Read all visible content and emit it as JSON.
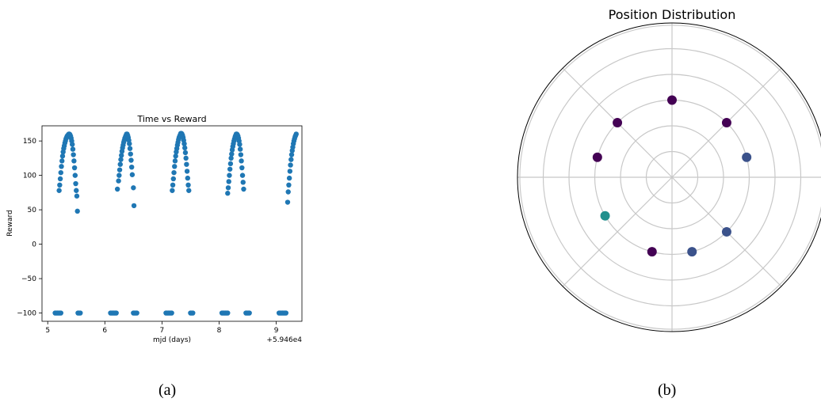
{
  "captions": {
    "a": "(a)",
    "b": "(b)"
  },
  "colors": {
    "scatter": "#1f77b4",
    "grid": "#c8c8c8",
    "polar_colors": [
      "#440154",
      "#3b528b",
      "#21908d"
    ]
  },
  "chart_data": [
    {
      "type": "scatter",
      "title": "Time vs Reward",
      "xlabel": "mjd (days)",
      "ylabel": "Reward",
      "x_offset_label": "+5.946e4",
      "x_ticks": [
        5,
        6,
        7,
        8,
        9
      ],
      "y_ticks": [
        -100,
        -50,
        0,
        50,
        100,
        150
      ],
      "xlim": [
        4.9,
        9.45
      ],
      "ylim": [
        -112,
        172
      ],
      "grid": false,
      "series": [
        {
          "points": [
            [
              5.2,
              78
            ],
            [
              5.21,
              86
            ],
            [
              5.22,
              95
            ],
            [
              5.23,
              104
            ],
            [
              5.24,
              113
            ],
            [
              5.25,
              121
            ],
            [
              5.26,
              128
            ],
            [
              5.27,
              134
            ],
            [
              5.28,
              139
            ],
            [
              5.29,
              143
            ],
            [
              5.3,
              147
            ],
            [
              5.31,
              150
            ],
            [
              5.32,
              153
            ],
            [
              5.33,
              155
            ],
            [
              5.34,
              157
            ],
            [
              5.35,
              158
            ],
            [
              5.36,
              159
            ],
            [
              5.37,
              160
            ],
            [
              5.38,
              160
            ],
            [
              5.39,
              159
            ],
            [
              5.4,
              157
            ],
            [
              5.41,
              154
            ],
            [
              5.42,
              150
            ],
            [
              5.43,
              145
            ],
            [
              5.44,
              138
            ],
            [
              5.45,
              130
            ],
            [
              5.46,
              121
            ],
            [
              5.47,
              111
            ],
            [
              5.48,
              100
            ],
            [
              5.49,
              88
            ],
            [
              5.5,
              78
            ],
            [
              5.51,
              70
            ],
            [
              5.52,
              48
            ],
            [
              6.22,
              80
            ],
            [
              6.24,
              92
            ],
            [
              6.25,
              100
            ],
            [
              6.26,
              108
            ],
            [
              6.27,
              116
            ],
            [
              6.28,
              123
            ],
            [
              6.29,
              129
            ],
            [
              6.3,
              135
            ],
            [
              6.31,
              140
            ],
            [
              6.32,
              144
            ],
            [
              6.33,
              148
            ],
            [
              6.34,
              151
            ],
            [
              6.35,
              154
            ],
            [
              6.36,
              156
            ],
            [
              6.37,
              158
            ],
            [
              6.38,
              160
            ],
            [
              6.39,
              160
            ],
            [
              6.4,
              158
            ],
            [
              6.41,
              155
            ],
            [
              6.42,
              151
            ],
            [
              6.43,
              146
            ],
            [
              6.44,
              139
            ],
            [
              6.45,
              131
            ],
            [
              6.46,
              122
            ],
            [
              6.47,
              112
            ],
            [
              6.48,
              101
            ],
            [
              6.5,
              82
            ],
            [
              6.51,
              56
            ],
            [
              7.18,
              78
            ],
            [
              7.19,
              86
            ],
            [
              7.2,
              95
            ],
            [
              7.21,
              104
            ],
            [
              7.22,
              113
            ],
            [
              7.23,
              121
            ],
            [
              7.24,
              128
            ],
            [
              7.25,
              134
            ],
            [
              7.26,
              139
            ],
            [
              7.27,
              144
            ],
            [
              7.28,
              148
            ],
            [
              7.29,
              152
            ],
            [
              7.3,
              155
            ],
            [
              7.31,
              157
            ],
            [
              7.32,
              159
            ],
            [
              7.33,
              161
            ],
            [
              7.34,
              161
            ],
            [
              7.35,
              160
            ],
            [
              7.36,
              158
            ],
            [
              7.37,
              155
            ],
            [
              7.38,
              151
            ],
            [
              7.39,
              146
            ],
            [
              7.4,
              140
            ],
            [
              7.41,
              133
            ],
            [
              7.42,
              125
            ],
            [
              7.43,
              116
            ],
            [
              7.44,
              106
            ],
            [
              7.45,
              96
            ],
            [
              7.46,
              86
            ],
            [
              7.47,
              78
            ],
            [
              8.15,
              74
            ],
            [
              8.16,
              82
            ],
            [
              8.17,
              91
            ],
            [
              8.18,
              100
            ],
            [
              8.19,
              109
            ],
            [
              8.2,
              117
            ],
            [
              8.21,
              125
            ],
            [
              8.22,
              131
            ],
            [
              8.23,
              137
            ],
            [
              8.24,
              142
            ],
            [
              8.25,
              146
            ],
            [
              8.26,
              150
            ],
            [
              8.27,
              153
            ],
            [
              8.28,
              156
            ],
            [
              8.29,
              158
            ],
            [
              8.3,
              160
            ],
            [
              8.31,
              160
            ],
            [
              8.32,
              159
            ],
            [
              8.33,
              157
            ],
            [
              8.34,
              154
            ],
            [
              8.35,
              150
            ],
            [
              8.36,
              145
            ],
            [
              8.37,
              138
            ],
            [
              8.38,
              130
            ],
            [
              8.39,
              121
            ],
            [
              8.4,
              111
            ],
            [
              8.41,
              100
            ],
            [
              8.42,
              90
            ],
            [
              8.43,
              80
            ],
            [
              9.2,
              61
            ],
            [
              9.21,
              76
            ],
            [
              9.22,
              86
            ],
            [
              9.23,
              96
            ],
            [
              9.24,
              106
            ],
            [
              9.25,
              115
            ],
            [
              9.26,
              123
            ],
            [
              9.27,
              130
            ],
            [
              9.28,
              136
            ],
            [
              9.29,
              141
            ],
            [
              9.3,
              146
            ],
            [
              9.31,
              150
            ],
            [
              9.32,
              153
            ],
            [
              9.33,
              156
            ],
            [
              9.34,
              158
            ],
            [
              9.35,
              160
            ],
            [
              5.13,
              -100
            ],
            [
              5.15,
              -100
            ],
            [
              5.17,
              -100
            ],
            [
              5.19,
              -100
            ],
            [
              5.21,
              -100
            ],
            [
              5.23,
              -100
            ],
            [
              5.53,
              -100
            ],
            [
              5.55,
              -100
            ],
            [
              5.57,
              -100
            ],
            [
              6.1,
              -100
            ],
            [
              6.12,
              -100
            ],
            [
              6.14,
              -100
            ],
            [
              6.16,
              -100
            ],
            [
              6.18,
              -100
            ],
            [
              6.2,
              -100
            ],
            [
              6.5,
              -100
            ],
            [
              6.52,
              -100
            ],
            [
              6.54,
              -100
            ],
            [
              6.56,
              -100
            ],
            [
              7.07,
              -100
            ],
            [
              7.09,
              -100
            ],
            [
              7.11,
              -100
            ],
            [
              7.13,
              -100
            ],
            [
              7.15,
              -100
            ],
            [
              7.17,
              -100
            ],
            [
              7.5,
              -100
            ],
            [
              7.52,
              -100
            ],
            [
              7.54,
              -100
            ],
            [
              8.05,
              -100
            ],
            [
              8.07,
              -100
            ],
            [
              8.09,
              -100
            ],
            [
              8.11,
              -100
            ],
            [
              8.13,
              -100
            ],
            [
              8.15,
              -100
            ],
            [
              8.47,
              -100
            ],
            [
              8.49,
              -100
            ],
            [
              8.51,
              -100
            ],
            [
              8.53,
              -100
            ],
            [
              9.05,
              -100
            ],
            [
              9.07,
              -100
            ],
            [
              9.09,
              -100
            ],
            [
              9.11,
              -100
            ],
            [
              9.13,
              -100
            ],
            [
              9.15,
              -100
            ],
            [
              9.17,
              -100
            ]
          ]
        }
      ]
    },
    {
      "type": "scatter",
      "subtype": "polar",
      "title": "Position Distribution",
      "radial_rings": 6,
      "angular_gridlines_deg": [
        0,
        45,
        90,
        135,
        180,
        225,
        270,
        315
      ],
      "points": [
        {
          "angle_deg": 90,
          "r": 0.5,
          "color": "#440154"
        },
        {
          "angle_deg": 45,
          "r": 0.5,
          "color": "#440154"
        },
        {
          "angle_deg": 135,
          "r": 0.5,
          "color": "#440154"
        },
        {
          "angle_deg": 165,
          "r": 0.5,
          "color": "#440154"
        },
        {
          "angle_deg": 15,
          "r": 0.5,
          "color": "#3b528b"
        },
        {
          "angle_deg": 315,
          "r": 0.5,
          "color": "#3b528b"
        },
        {
          "angle_deg": 285,
          "r": 0.5,
          "color": "#3b528b"
        },
        {
          "angle_deg": 255,
          "r": 0.5,
          "color": "#440154"
        },
        {
          "angle_deg": 210,
          "r": 0.5,
          "color": "#21908d"
        }
      ]
    }
  ]
}
